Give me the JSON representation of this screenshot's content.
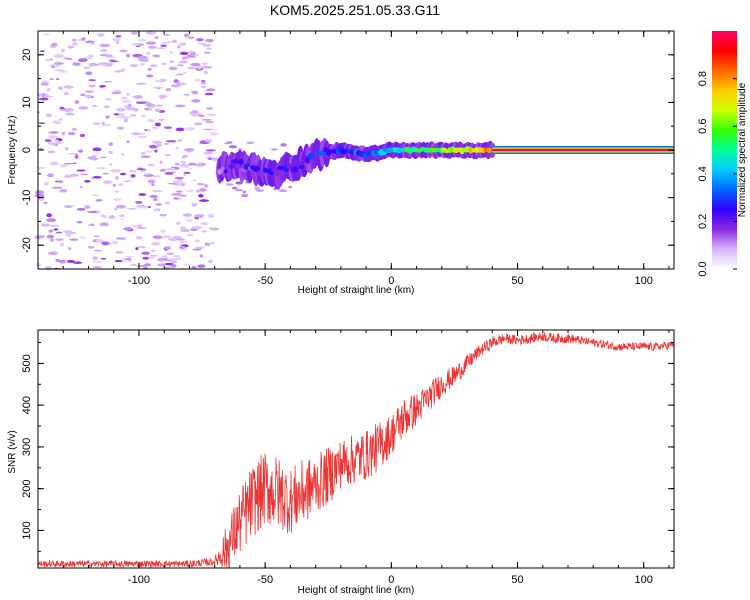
{
  "title": "KOM5.2025.251.05.33.G11",
  "chart_data": [
    {
      "type": "heatmap",
      "name": "spectrogram",
      "xlabel": "Height of straight line (km)",
      "ylabel": "Frequency (Hz)",
      "xlim": [
        -140,
        112
      ],
      "ylim": [
        -25,
        25
      ],
      "xticks": [
        -100,
        -50,
        0,
        50,
        100
      ],
      "yticks": [
        -20,
        -10,
        0,
        10,
        20
      ],
      "colorbar": {
        "label": "Normalized spectral amplitude",
        "range": [
          0,
          1
        ],
        "ticks": [
          0.0,
          0.2,
          0.4,
          0.6,
          0.8
        ],
        "colors": [
          "#ffffff",
          "#d8b4fb",
          "#8a2be2",
          "#3300ff",
          "#0066ff",
          "#00ccff",
          "#00ff99",
          "#33ff00",
          "#ccff00",
          "#ffcc00",
          "#ff6600",
          "#ff0000",
          "#ff0066"
        ]
      },
      "ridge": {
        "description_points": [
          {
            "x": -68,
            "y": -4,
            "amp": 0.15
          },
          {
            "x": -60,
            "y": -3,
            "amp": 0.2
          },
          {
            "x": -50,
            "y": -5,
            "amp": 0.22
          },
          {
            "x": -40,
            "y": -4,
            "amp": 0.2
          },
          {
            "x": -30,
            "y": -1,
            "amp": 0.25
          },
          {
            "x": -20,
            "y": 0,
            "amp": 0.3
          },
          {
            "x": -10,
            "y": -1,
            "amp": 0.3
          },
          {
            "x": 0,
            "y": 0,
            "amp": 0.45
          },
          {
            "x": 20,
            "y": 0,
            "amp": 0.6
          },
          {
            "x": 40,
            "y": 0,
            "amp": 0.8
          },
          {
            "x": 112,
            "y": 0,
            "amp": 0.95
          }
        ]
      },
      "noise_region": {
        "x_from": -140,
        "x_to": -70,
        "y_from": -25,
        "y_to": 25
      }
    },
    {
      "type": "line",
      "name": "snr",
      "xlabel": "Height of straight line (km)",
      "ylabel": "SNR (v/v)",
      "xlim": [
        -140,
        112
      ],
      "ylim": [
        10,
        580
      ],
      "xticks": [
        -100,
        -50,
        0,
        50,
        100
      ],
      "yticks": [
        100,
        200,
        300,
        400,
        500
      ],
      "color": "#ee3333",
      "series": [
        {
          "name": "SNR",
          "x": [
            -140,
            -120,
            -100,
            -80,
            -70,
            -65,
            -60,
            -55,
            -50,
            -45,
            -40,
            -35,
            -30,
            -25,
            -20,
            -15,
            -10,
            -5,
            0,
            5,
            10,
            15,
            20,
            25,
            30,
            35,
            40,
            45,
            50,
            55,
            60,
            65,
            70,
            75,
            80,
            85,
            90,
            95,
            100,
            105,
            112
          ],
          "values": [
            20,
            20,
            20,
            20,
            25,
            60,
            120,
            170,
            200,
            190,
            170,
            190,
            210,
            230,
            260,
            270,
            280,
            300,
            330,
            370,
            390,
            420,
            450,
            470,
            500,
            530,
            550,
            560,
            555,
            560,
            565,
            560,
            560,
            555,
            550,
            545,
            540,
            540,
            540,
            540,
            545
          ],
          "noise_amplitude": [
            8,
            8,
            8,
            8,
            10,
            60,
            80,
            90,
            90,
            90,
            80,
            80,
            70,
            70,
            60,
            60,
            60,
            60,
            50,
            50,
            40,
            35,
            30,
            25,
            20,
            15,
            15,
            12,
            12,
            12,
            12,
            12,
            12,
            10,
            10,
            10,
            10,
            10,
            10,
            10,
            10
          ]
        }
      ]
    }
  ]
}
